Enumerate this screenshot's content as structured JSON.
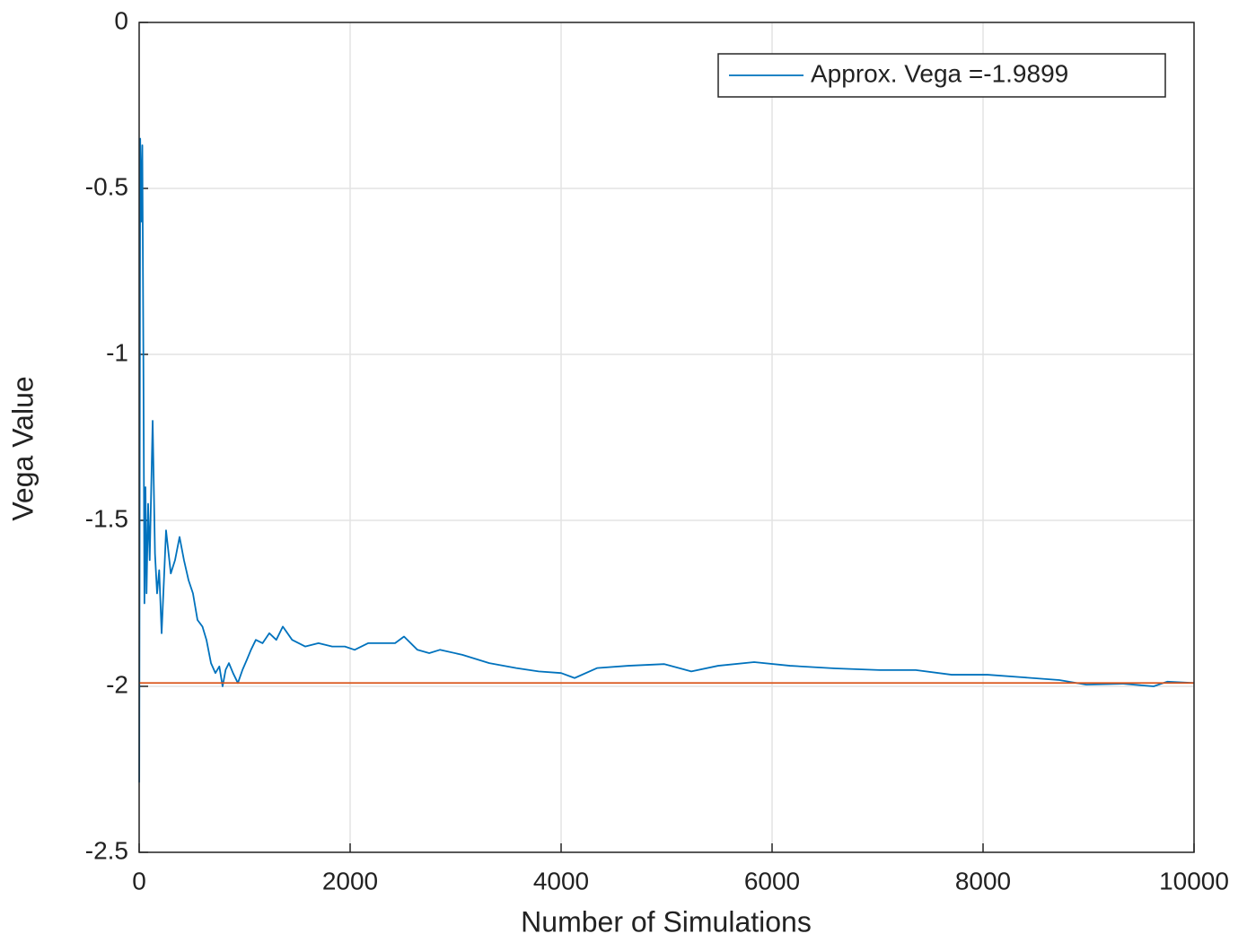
{
  "chart_data": {
    "type": "line",
    "xlabel": "Number of Simulations",
    "ylabel": "Vega Value",
    "xlim": [
      0,
      10000
    ],
    "xticks": [
      0,
      2000,
      4000,
      6000,
      8000,
      10000
    ],
    "ylim": [
      -2.5,
      0
    ],
    "yticks": [
      -2.5,
      -2,
      -1.5,
      -1,
      -0.5,
      0
    ],
    "grid": true,
    "legend": "upper right",
    "series": [
      {
        "name": "Approx. Vega =-1.9899",
        "color": "#0072bd",
        "x": [
          1,
          10,
          20,
          30,
          40,
          50,
          60,
          70,
          85,
          100,
          128,
          150,
          170,
          190,
          213,
          235,
          255,
          300,
          340,
          383,
          425,
          468,
          510,
          553,
          600,
          638,
          681,
          723,
          760,
          791,
          820,
          851,
          890,
          936,
          980,
          1021,
          1060,
          1106,
          1170,
          1234,
          1300,
          1362,
          1450,
          1574,
          1700,
          1830,
          1950,
          2043,
          2170,
          2300,
          2426,
          2511,
          2638,
          2750,
          2851,
          3064,
          3319,
          3574,
          3787,
          4000,
          4128,
          4340,
          4638,
          4979,
          5234,
          5489,
          5830,
          6170,
          6596,
          7021,
          7362,
          7702,
          8043,
          8383,
          8723,
          8979,
          9319,
          9617,
          9745,
          10000
        ],
        "values": [
          -2.29,
          -0.35,
          -0.6,
          -0.37,
          -1.0,
          -1.75,
          -1.4,
          -1.72,
          -1.45,
          -1.62,
          -1.2,
          -1.6,
          -1.72,
          -1.65,
          -1.84,
          -1.68,
          -1.53,
          -1.66,
          -1.62,
          -1.55,
          -1.62,
          -1.68,
          -1.72,
          -1.8,
          -1.82,
          -1.86,
          -1.93,
          -1.96,
          -1.94,
          -2.0,
          -1.95,
          -1.93,
          -1.96,
          -1.99,
          -1.95,
          -1.92,
          -1.89,
          -1.86,
          -1.87,
          -1.84,
          -1.86,
          -1.82,
          -1.86,
          -1.88,
          -1.87,
          -1.88,
          -1.88,
          -1.89,
          -1.87,
          -1.87,
          -1.87,
          -1.85,
          -1.89,
          -1.9,
          -1.89,
          -1.905,
          -1.93,
          -1.945,
          -1.955,
          -1.96,
          -1.975,
          -1.945,
          -1.938,
          -1.933,
          -1.955,
          -1.938,
          -1.927,
          -1.938,
          -1.946,
          -1.951,
          -1.951,
          -1.965,
          -1.965,
          -1.973,
          -1.981,
          -1.995,
          -1.992,
          -2.0,
          -1.986,
          -1.9899
        ]
      },
      {
        "color": "#d95319",
        "x": [
          0,
          10000
        ],
        "values": [
          -1.9899,
          -1.9899
        ]
      }
    ]
  }
}
